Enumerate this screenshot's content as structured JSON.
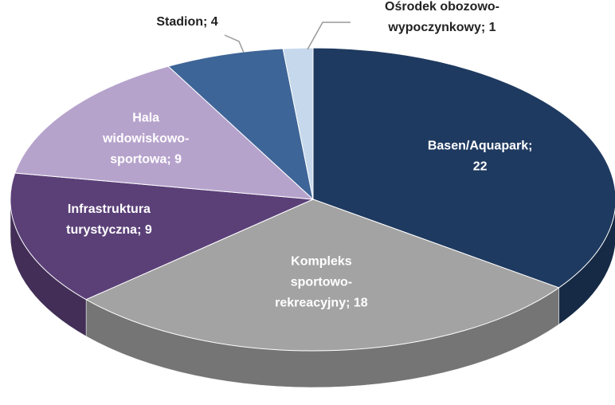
{
  "chart_data": {
    "type": "pie3d",
    "values": [
      22,
      18,
      9,
      9,
      4,
      1
    ],
    "value_labels": [
      [
        "Basen/Aquapark;",
        "22"
      ],
      [
        "Kompleks",
        "sportowo-",
        "rekreacyjny; 18"
      ],
      [
        "Infrastruktura",
        "turystyczna; 9"
      ],
      [
        "Hala",
        "widowiskowo-",
        "sportowa; 9"
      ],
      [
        "Stadion; 4"
      ],
      [
        "Ośrodek obozowo-",
        "wypoczynkowy; 1"
      ]
    ],
    "colors": [
      "#1f3a60",
      "#a3a3a3",
      "#5b4078",
      "#b6a3cc",
      "#3e6597",
      "#c6d8ec"
    ]
  }
}
